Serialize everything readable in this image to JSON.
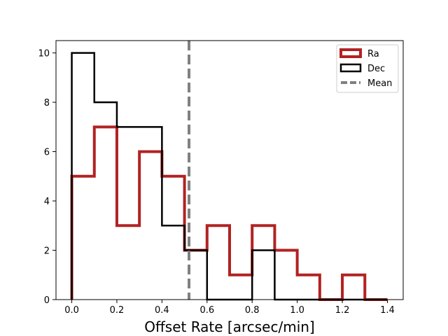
{
  "chart_data": {
    "type": "histogram",
    "title": "",
    "xlabel": "Offset Rate [arcsec/min]",
    "ylabel": "",
    "xlim": [
      -0.07,
      1.47
    ],
    "ylim": [
      0,
      10.5
    ],
    "xticks": [
      0.0,
      0.2,
      0.4,
      0.6,
      0.8,
      1.0,
      1.2,
      1.4
    ],
    "xtick_labels": [
      "0.0",
      "0.2",
      "0.4",
      "0.6",
      "0.8",
      "1.0",
      "1.2",
      "1.4"
    ],
    "yticks": [
      0,
      2,
      4,
      6,
      8,
      10
    ],
    "ytick_labels": [
      "0",
      "2",
      "4",
      "6",
      "8",
      "10"
    ],
    "grid": false,
    "legend_position": "top-right",
    "bin_edges": [
      0.0,
      0.1,
      0.2,
      0.3,
      0.4,
      0.5,
      0.6,
      0.7,
      0.8,
      0.9,
      1.0,
      1.1,
      1.2,
      1.3,
      1.4
    ],
    "series": [
      {
        "name": "Ra",
        "style": "step",
        "color": "#b22222",
        "counts": [
          5,
          7,
          3,
          6,
          5,
          2,
          3,
          1,
          3,
          2,
          1,
          0,
          1,
          0
        ]
      },
      {
        "name": "Dec",
        "style": "step",
        "color": "#000000",
        "counts": [
          10,
          8,
          7,
          7,
          3,
          2,
          0,
          0,
          2,
          0,
          0,
          0,
          0,
          0
        ]
      }
    ],
    "mean_line": {
      "name": "Mean",
      "x": 0.52,
      "color": "#808080",
      "style": "dashed"
    }
  }
}
